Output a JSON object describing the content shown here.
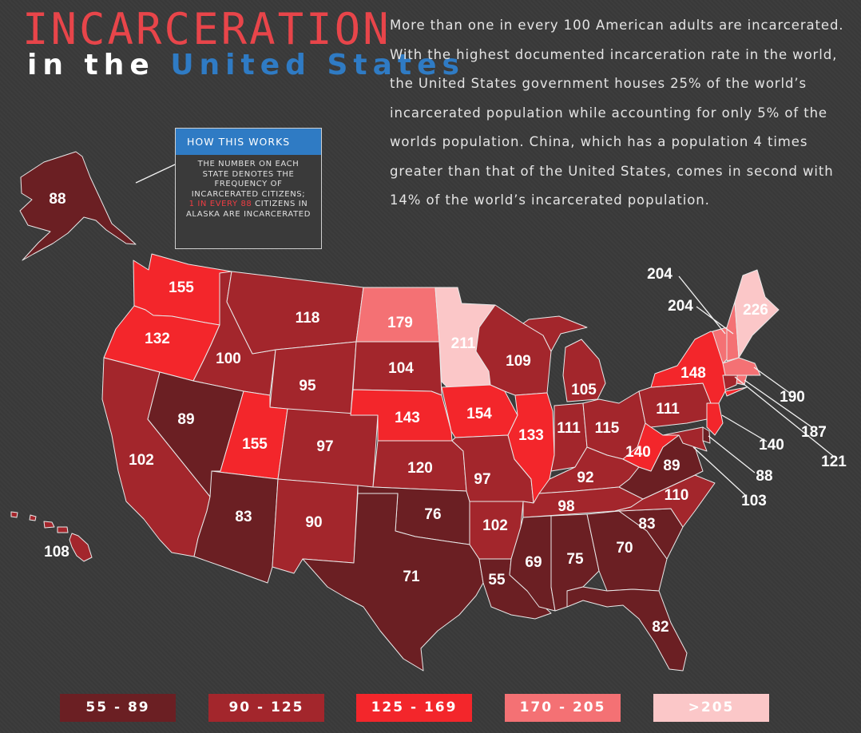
{
  "title": {
    "line1": "INCARCERATION",
    "line2_prefix": "in the",
    "line2_highlight": "United States"
  },
  "intro": "More than one in every 100 American adults are incarcerated. With the highest documented incarceration rate in the world, the United States government houses 25% of the world’s incarcerated population while accounting for only 5% of the worlds population. China, which has a population 4 times greater than that of the United States, comes in second with 14% of the world’s incarcerated population.",
  "how_it_works": {
    "header": "HOW THIS WORKS",
    "body": "THE NUMBER ON EACH STATE DENOTES THE FREQUENCY OF INCARCERATED CITIZENS;",
    "highlight": "1 IN EVERY 88",
    "tail": "CITIZENS IN ALASKA ARE INCARCERATED"
  },
  "colors": {
    "band1": "#6b1f23",
    "band2": "#a3262c",
    "band3": "#f3262b",
    "band4": "#f47174",
    "band5": "#fbc7c8",
    "border": "#e9e9e9",
    "title_red": "#e8454a",
    "accent_blue": "#2f7bc4"
  },
  "legend": [
    {
      "label": "55 - 89",
      "band": 1
    },
    {
      "label": "90 - 125",
      "band": 2
    },
    {
      "label": "125 - 169",
      "band": 3
    },
    {
      "label": "170 - 205",
      "band": 4
    },
    {
      "label": ">205",
      "band": 5
    }
  ],
  "states": [
    {
      "id": "AK",
      "value": "88",
      "band": 1
    },
    {
      "id": "HI",
      "value": "108",
      "band": 2
    },
    {
      "id": "WA",
      "value": "155",
      "band": 3
    },
    {
      "id": "OR",
      "value": "132",
      "band": 3
    },
    {
      "id": "CA",
      "value": "102",
      "band": 2
    },
    {
      "id": "ID",
      "value": "100",
      "band": 2
    },
    {
      "id": "NV",
      "value": "89",
      "band": 1
    },
    {
      "id": "MT",
      "value": "118",
      "band": 2
    },
    {
      "id": "WY",
      "value": "95",
      "band": 2
    },
    {
      "id": "UT",
      "value": "155",
      "band": 3
    },
    {
      "id": "AZ",
      "value": "83",
      "band": 1
    },
    {
      "id": "CO",
      "value": "97",
      "band": 2
    },
    {
      "id": "NM",
      "value": "90",
      "band": 2
    },
    {
      "id": "ND",
      "value": "179",
      "band": 4
    },
    {
      "id": "SD",
      "value": "104",
      "band": 2
    },
    {
      "id": "NE",
      "value": "143",
      "band": 3
    },
    {
      "id": "KS",
      "value": "120",
      "band": 2
    },
    {
      "id": "OK",
      "value": "76",
      "band": 1
    },
    {
      "id": "TX",
      "value": "71",
      "band": 1
    },
    {
      "id": "MN",
      "value": "211",
      "band": 5
    },
    {
      "id": "IA",
      "value": "154",
      "band": 3
    },
    {
      "id": "MO",
      "value": "97",
      "band": 2
    },
    {
      "id": "AR",
      "value": "102",
      "band": 2
    },
    {
      "id": "LA",
      "value": "55",
      "band": 1
    },
    {
      "id": "WI",
      "value": "109",
      "band": 2
    },
    {
      "id": "IL",
      "value": "133",
      "band": 3
    },
    {
      "id": "MI",
      "value": "105",
      "band": 2
    },
    {
      "id": "IN",
      "value": "111",
      "band": 2
    },
    {
      "id": "OH",
      "value": "115",
      "band": 2
    },
    {
      "id": "KY",
      "value": "92",
      "band": 2
    },
    {
      "id": "TN",
      "value": "98",
      "band": 2
    },
    {
      "id": "MS",
      "value": "69",
      "band": 1
    },
    {
      "id": "AL",
      "value": "75",
      "band": 1
    },
    {
      "id": "GA",
      "value": "70",
      "band": 1
    },
    {
      "id": "FL",
      "value": "82",
      "band": 1
    },
    {
      "id": "SC",
      "value": "83",
      "band": 1
    },
    {
      "id": "NC",
      "value": "110",
      "band": 2
    },
    {
      "id": "VA",
      "value": "89",
      "band": 1
    },
    {
      "id": "WV",
      "value": "140",
      "band": 3
    },
    {
      "id": "PA",
      "value": "111",
      "band": 2
    },
    {
      "id": "NY",
      "value": "148",
      "band": 3
    },
    {
      "id": "VT",
      "value": "204",
      "band": 4
    },
    {
      "id": "NH",
      "value": "204",
      "band": 4
    },
    {
      "id": "ME",
      "value": "226",
      "band": 5
    },
    {
      "id": "MA",
      "value": "190",
      "band": 4
    },
    {
      "id": "RI",
      "value": "187",
      "band": 4
    },
    {
      "id": "CT",
      "value": "121",
      "band": 2
    },
    {
      "id": "NJ",
      "value": "140",
      "band": 3
    },
    {
      "id": "DE",
      "value": "88",
      "band": 1
    },
    {
      "id": "MD",
      "value": "103",
      "band": 2
    }
  ]
}
